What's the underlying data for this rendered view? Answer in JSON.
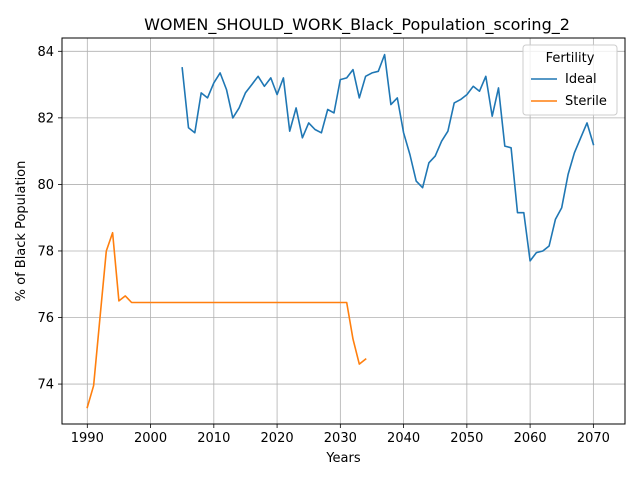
{
  "chart_data": {
    "type": "line",
    "title": "WOMEN_SHOULD_WORK_Black_Population_scoring_2",
    "xlabel": "Years",
    "ylabel": "% of Black Population",
    "xlim": [
      1986,
      2075
    ],
    "ylim": [
      72.8,
      84.4
    ],
    "xticks": [
      1990,
      2000,
      2010,
      2020,
      2030,
      2040,
      2050,
      2060,
      2070
    ],
    "yticks": [
      74,
      76,
      78,
      80,
      82,
      84
    ],
    "grid": true,
    "legend": {
      "title": "Fertility",
      "placement": "top-right"
    },
    "series": [
      {
        "name": "Ideal",
        "color": "#1f77b4",
        "x": [
          2005,
          2006,
          2007,
          2008,
          2009,
          2010,
          2011,
          2012,
          2013,
          2014,
          2015,
          2016,
          2017,
          2018,
          2019,
          2020,
          2021,
          2022,
          2023,
          2024,
          2025,
          2026,
          2027,
          2028,
          2029,
          2030,
          2031,
          2032,
          2033,
          2034,
          2035,
          2036,
          2037,
          2038,
          2039,
          2040,
          2041,
          2042,
          2043,
          2044,
          2045,
          2046,
          2047,
          2048,
          2049,
          2050,
          2051,
          2052,
          2053,
          2054,
          2055,
          2056,
          2057,
          2058,
          2059,
          2060,
          2061,
          2062,
          2063,
          2064,
          2065,
          2066,
          2067,
          2068,
          2069,
          2070
        ],
        "y": [
          83.5,
          81.7,
          81.55,
          82.75,
          82.6,
          83.05,
          83.35,
          82.85,
          82.0,
          82.3,
          82.75,
          83.0,
          83.25,
          82.95,
          83.2,
          82.7,
          83.2,
          81.6,
          82.3,
          81.4,
          81.85,
          81.65,
          81.55,
          82.25,
          82.15,
          83.15,
          83.2,
          83.45,
          82.6,
          83.25,
          83.35,
          83.4,
          83.9,
          82.4,
          82.6,
          81.55,
          80.9,
          80.1,
          79.9,
          80.65,
          80.85,
          81.3,
          81.6,
          82.45,
          82.55,
          82.7,
          82.95,
          82.8,
          83.25,
          82.05,
          82.9,
          81.15,
          81.1,
          79.15,
          79.15,
          77.7,
          77.95,
          78.0,
          78.15,
          78.95,
          79.3,
          80.3,
          80.95,
          81.4,
          81.85,
          81.2
        ]
      },
      {
        "name": "Sterile",
        "color": "#ff7f0e",
        "x": [
          1990,
          1991,
          1992,
          1993,
          1994,
          1995,
          1996,
          1997,
          1998,
          1999,
          2000,
          2005,
          2010,
          2015,
          2020,
          2025,
          2030,
          2031,
          2032,
          2033,
          2034
        ],
        "y": [
          73.3,
          73.95,
          76.0,
          78.0,
          78.55,
          76.5,
          76.65,
          76.45,
          76.45,
          76.45,
          76.45,
          76.45,
          76.45,
          76.45,
          76.45,
          76.45,
          76.45,
          76.45,
          75.35,
          74.6,
          74.75
        ]
      }
    ]
  }
}
